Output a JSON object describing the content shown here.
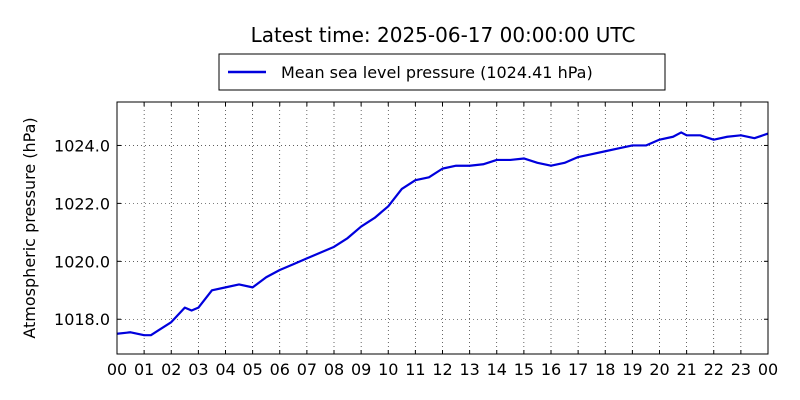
{
  "chart_data": {
    "type": "line",
    "title": "Latest time: 2025-06-17 00:00:00 UTC",
    "ylabel": "Atmospheric pressure (hPa)",
    "xlabel": "",
    "xlim": [
      0,
      24
    ],
    "ylim": [
      1016.8,
      1025.5
    ],
    "grid": true,
    "legend_position": "top-center",
    "x_ticks": [
      0,
      1,
      2,
      3,
      4,
      5,
      6,
      7,
      8,
      9,
      10,
      11,
      12,
      13,
      14,
      15,
      16,
      17,
      18,
      19,
      20,
      21,
      22,
      23,
      24
    ],
    "x_tick_labels": [
      "00",
      "01",
      "02",
      "03",
      "04",
      "05",
      "06",
      "07",
      "08",
      "09",
      "10",
      "11",
      "12",
      "13",
      "14",
      "15",
      "16",
      "17",
      "18",
      "19",
      "20",
      "21",
      "22",
      "23",
      "00"
    ],
    "y_ticks": [
      1018,
      1020,
      1022,
      1024
    ],
    "y_tick_labels": [
      "1018.0",
      "1020.0",
      "1022.0",
      "1024.0"
    ],
    "series": [
      {
        "name": "Mean sea level pressure (1024.41 hPa)",
        "color": "#0000dd",
        "x": [
          0,
          0.5,
          1,
          1.25,
          1.5,
          2,
          2.5,
          2.75,
          3,
          3.5,
          4,
          4.5,
          5,
          5.5,
          6,
          6.5,
          7,
          7.5,
          8,
          8.5,
          9,
          9.5,
          10,
          10.5,
          11,
          11.5,
          12,
          12.5,
          13,
          13.5,
          14,
          14.5,
          15,
          15.5,
          16,
          16.5,
          17,
          17.5,
          18,
          18.5,
          19,
          19.5,
          20,
          20.5,
          20.8,
          21,
          21.5,
          22,
          22.5,
          23,
          23.5,
          24
        ],
        "values": [
          1017.5,
          1017.55,
          1017.45,
          1017.45,
          1017.6,
          1017.9,
          1018.4,
          1018.3,
          1018.4,
          1019.0,
          1019.1,
          1019.2,
          1019.1,
          1019.45,
          1019.7,
          1019.9,
          1020.1,
          1020.3,
          1020.5,
          1020.8,
          1021.2,
          1021.5,
          1021.9,
          1022.5,
          1022.8,
          1022.9,
          1023.2,
          1023.3,
          1023.3,
          1023.35,
          1023.5,
          1023.5,
          1023.55,
          1023.4,
          1023.3,
          1023.4,
          1023.6,
          1023.7,
          1023.8,
          1023.9,
          1024.0,
          1024.0,
          1024.2,
          1024.3,
          1024.45,
          1024.35,
          1024.35,
          1024.2,
          1024.3,
          1024.35,
          1024.25,
          1024.41
        ]
      }
    ]
  }
}
